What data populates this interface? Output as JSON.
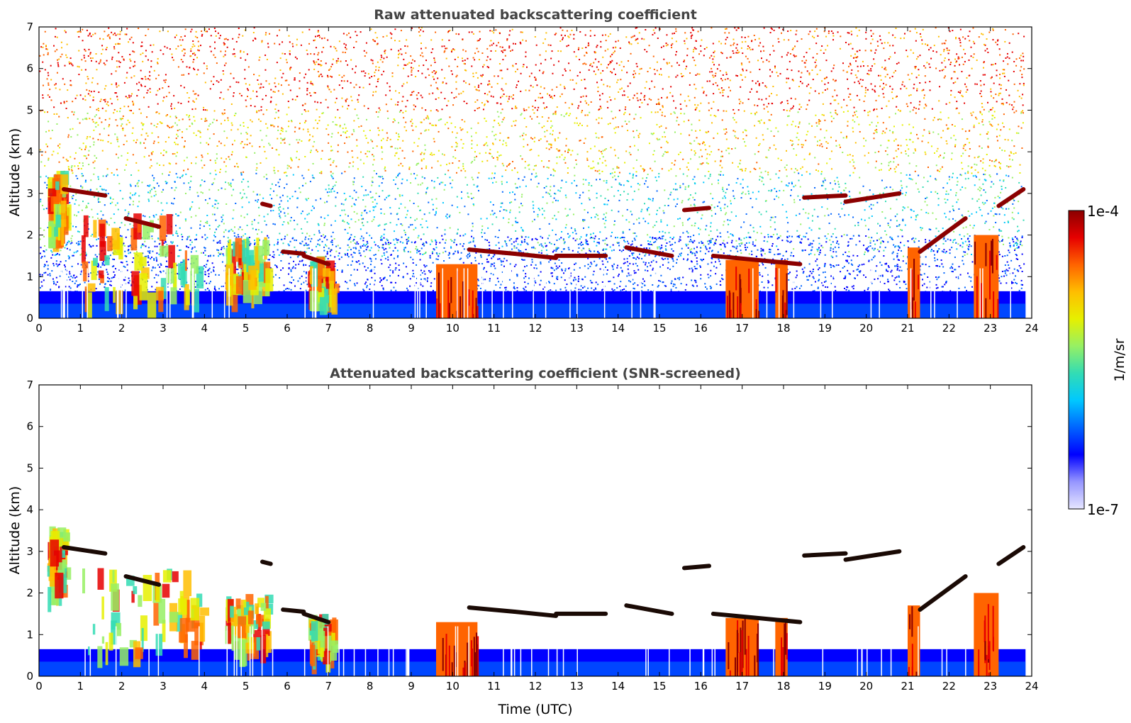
{
  "chart_data": [
    {
      "type": "heatmap",
      "title": "Raw attenuated backscattering coefficient",
      "xlabel": "",
      "ylabel": "Altitude (km)",
      "xlim": [
        0,
        24
      ],
      "ylim": [
        0,
        7
      ],
      "x_ticks": [
        "0",
        "1",
        "2",
        "3",
        "4",
        "5",
        "6",
        "7",
        "8",
        "9",
        "10",
        "11",
        "12",
        "13",
        "14",
        "15",
        "16",
        "17",
        "18",
        "19",
        "20",
        "21",
        "22",
        "23",
        "24"
      ],
      "y_ticks": [
        "0",
        "1",
        "2",
        "3",
        "4",
        "5",
        "6",
        "7"
      ],
      "screened": false,
      "features": {
        "boundary_layer_top_km": 0.65,
        "aerosol_layers": [
          {
            "t0": 0.2,
            "t1": 0.6,
            "z0": 2.1,
            "z1": 3.6
          },
          {
            "t0": 1.0,
            "t1": 3.9,
            "z0": 0.6,
            "z1": 2.6
          },
          {
            "t0": 4.5,
            "t1": 5.5,
            "z0": 0.8,
            "z1": 2.0
          },
          {
            "t0": 6.5,
            "t1": 7.1,
            "z0": 0.6,
            "z1": 1.5
          }
        ],
        "precip_columns": [
          {
            "t0": 9.6,
            "t1": 10.6,
            "top": 1.3
          },
          {
            "t0": 16.6,
            "t1": 17.4,
            "top": 1.4
          },
          {
            "t0": 17.8,
            "t1": 18.1,
            "top": 1.4
          },
          {
            "t0": 21.0,
            "t1": 21.3,
            "top": 1.7
          },
          {
            "t0": 22.6,
            "t1": 23.2,
            "top": 2.0
          }
        ],
        "cloud_base_segments": [
          [
            0.6,
            3.1,
            1.6,
            2.95
          ],
          [
            2.1,
            2.4,
            2.9,
            2.2
          ],
          [
            5.4,
            2.75,
            5.6,
            2.7
          ],
          [
            5.9,
            1.6,
            6.4,
            1.55
          ],
          [
            6.4,
            1.5,
            7.0,
            1.3
          ],
          [
            10.4,
            1.65,
            11.5,
            1.55
          ],
          [
            11.5,
            1.55,
            12.5,
            1.45
          ],
          [
            12.5,
            1.5,
            13.7,
            1.5
          ],
          [
            14.2,
            1.7,
            15.3,
            1.5
          ],
          [
            15.6,
            2.6,
            16.2,
            2.65
          ],
          [
            16.3,
            1.5,
            18.4,
            1.3
          ],
          [
            18.5,
            2.9,
            19.5,
            2.95
          ],
          [
            19.5,
            2.8,
            20.8,
            3.0
          ],
          [
            21.3,
            1.6,
            22.4,
            2.4
          ],
          [
            23.2,
            2.7,
            23.8,
            3.1
          ]
        ]
      }
    },
    {
      "type": "heatmap",
      "title": "Attenuated backscattering coefficient (SNR-screened)",
      "xlabel": "Time (UTC)",
      "ylabel": "Altitude (km)",
      "xlim": [
        0,
        24
      ],
      "ylim": [
        0,
        7
      ],
      "x_ticks": [
        "0",
        "1",
        "2",
        "3",
        "4",
        "5",
        "6",
        "7",
        "8",
        "9",
        "10",
        "11",
        "12",
        "13",
        "14",
        "15",
        "16",
        "17",
        "18",
        "19",
        "20",
        "21",
        "22",
        "23",
        "24"
      ],
      "y_ticks": [
        "0",
        "1",
        "2",
        "3",
        "4",
        "5",
        "6",
        "7"
      ],
      "screened": true
    }
  ],
  "colorbar": {
    "max_label": "1e-4",
    "min_label": "1e-7",
    "unit_label": "1/m/sr",
    "colors": [
      "#e6e6ff",
      "#9696ff",
      "#0000ff",
      "#0064ff",
      "#00c8ff",
      "#32dcb4",
      "#96f064",
      "#e6f000",
      "#ffbe00",
      "#ff6400",
      "#e60000",
      "#8b0000"
    ]
  }
}
